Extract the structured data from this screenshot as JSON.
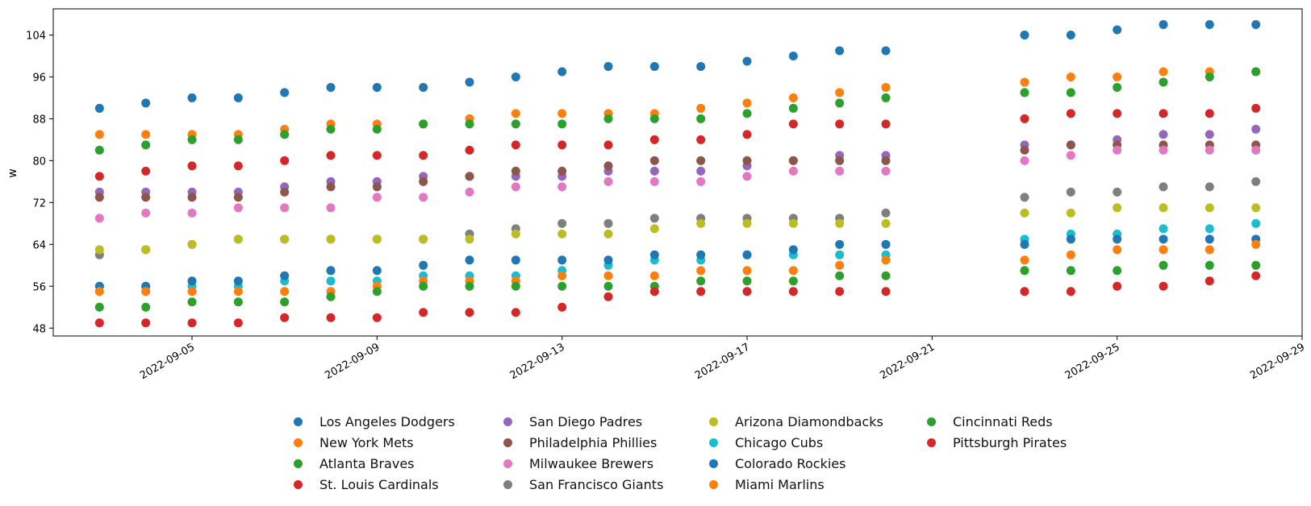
{
  "chart_data": {
    "type": "scatter",
    "title": "",
    "xlabel": "",
    "ylabel": "w",
    "xlim": [
      "2022-09-02",
      "2022-09-29"
    ],
    "ylim": [
      46.5,
      109
    ],
    "yticks": [
      48,
      56,
      64,
      72,
      80,
      88,
      96,
      104
    ],
    "xticks": [
      "2022-09-05",
      "2022-09-09",
      "2022-09-13",
      "2022-09-17",
      "2022-09-21",
      "2022-09-25",
      "2022-09-29"
    ],
    "legend_position": "bottom-center",
    "grid": false,
    "dates": [
      "2022-09-03",
      "2022-09-04",
      "2022-09-05",
      "2022-09-06",
      "2022-09-07",
      "2022-09-08",
      "2022-09-09",
      "2022-09-10",
      "2022-09-11",
      "2022-09-12",
      "2022-09-13",
      "2022-09-14",
      "2022-09-15",
      "2022-09-16",
      "2022-09-17",
      "2022-09-18",
      "2022-09-19",
      "2022-09-20",
      "2022-09-23",
      "2022-09-24",
      "2022-09-25",
      "2022-09-26",
      "2022-09-27",
      "2022-09-28"
    ],
    "series": [
      {
        "name": "Los Angeles Dodgers",
        "color": "#1f77b4",
        "values": [
          90,
          91,
          92,
          92,
          93,
          94,
          94,
          94,
          95,
          96,
          97,
          98,
          98,
          98,
          99,
          100,
          101,
          101,
          104,
          104,
          105,
          106,
          106,
          106
        ]
      },
      {
        "name": "New York Mets",
        "color": "#ff7f0e",
        "values": [
          85,
          85,
          85,
          85,
          86,
          87,
          87,
          87,
          88,
          89,
          89,
          89,
          89,
          90,
          91,
          92,
          93,
          94,
          95,
          96,
          96,
          97,
          97,
          97
        ]
      },
      {
        "name": "Atlanta Braves",
        "color": "#2ca02c",
        "values": [
          82,
          83,
          84,
          84,
          85,
          86,
          86,
          87,
          87,
          87,
          87,
          88,
          88,
          88,
          89,
          90,
          91,
          92,
          93,
          93,
          94,
          95,
          96,
          97
        ]
      },
      {
        "name": "St. Louis Cardinals",
        "color": "#d62728",
        "values": [
          77,
          78,
          79,
          79,
          80,
          81,
          81,
          81,
          82,
          83,
          83,
          83,
          84,
          84,
          85,
          87,
          87,
          87,
          88,
          89,
          89,
          89,
          89,
          90
        ]
      },
      {
        "name": "San Diego Padres",
        "color": "#9467bd",
        "values": [
          74,
          74,
          74,
          74,
          75,
          76,
          76,
          77,
          77,
          77,
          77,
          78,
          78,
          78,
          79,
          80,
          81,
          81,
          83,
          83,
          84,
          85,
          85,
          86
        ]
      },
      {
        "name": "Philadelphia Phillies",
        "color": "#8c564b",
        "values": [
          73,
          73,
          73,
          73,
          74,
          75,
          75,
          76,
          77,
          78,
          78,
          79,
          80,
          80,
          80,
          80,
          80,
          80,
          82,
          83,
          83,
          83,
          83,
          83
        ]
      },
      {
        "name": "Milwaukee Brewers",
        "color": "#e377c2",
        "values": [
          69,
          70,
          70,
          71,
          71,
          71,
          73,
          73,
          74,
          75,
          75,
          76,
          76,
          76,
          77,
          78,
          78,
          78,
          80,
          81,
          82,
          82,
          82,
          82
        ]
      },
      {
        "name": "San Francisco Giants",
        "color": "#7f7f7f",
        "values": [
          62,
          63,
          64,
          65,
          65,
          65,
          65,
          65,
          66,
          67,
          68,
          68,
          69,
          69,
          69,
          69,
          69,
          70,
          73,
          74,
          74,
          75,
          75,
          76
        ]
      },
      {
        "name": "Arizona Diamondbacks",
        "color": "#bcbd22",
        "values": [
          63,
          63,
          64,
          65,
          65,
          65,
          65,
          65,
          65,
          66,
          66,
          66,
          67,
          68,
          68,
          68,
          68,
          68,
          70,
          70,
          71,
          71,
          71,
          71
        ]
      },
      {
        "name": "Chicago Cubs",
        "color": "#17becf",
        "values": [
          56,
          56,
          56,
          56,
          57,
          57,
          57,
          58,
          58,
          58,
          59,
          60,
          61,
          61,
          62,
          62,
          62,
          62,
          65,
          66,
          66,
          67,
          67,
          68
        ]
      },
      {
        "name": "Colorado Rockies",
        "color": "#1f77b4",
        "values": [
          56,
          56,
          57,
          57,
          58,
          59,
          59,
          60,
          61,
          61,
          61,
          61,
          62,
          62,
          62,
          63,
          64,
          64,
          64,
          65,
          65,
          65,
          65,
          65
        ]
      },
      {
        "name": "Miami Marlins",
        "color": "#ff7f0e",
        "values": [
          55,
          55,
          55,
          55,
          55,
          55,
          56,
          57,
          57,
          57,
          58,
          58,
          58,
          59,
          59,
          59,
          60,
          61,
          61,
          62,
          63,
          63,
          63,
          64
        ]
      },
      {
        "name": "Cincinnati Reds",
        "color": "#2ca02c",
        "values": [
          52,
          52,
          53,
          53,
          53,
          54,
          55,
          56,
          56,
          56,
          56,
          56,
          56,
          57,
          57,
          57,
          58,
          58,
          59,
          59,
          59,
          60,
          60,
          60
        ]
      },
      {
        "name": "Pittsburgh Pirates",
        "color": "#d62728",
        "values": [
          49,
          49,
          49,
          49,
          50,
          50,
          50,
          51,
          51,
          51,
          52,
          54,
          55,
          55,
          55,
          55,
          55,
          55,
          55,
          55,
          56,
          56,
          57,
          58
        ]
      }
    ]
  }
}
